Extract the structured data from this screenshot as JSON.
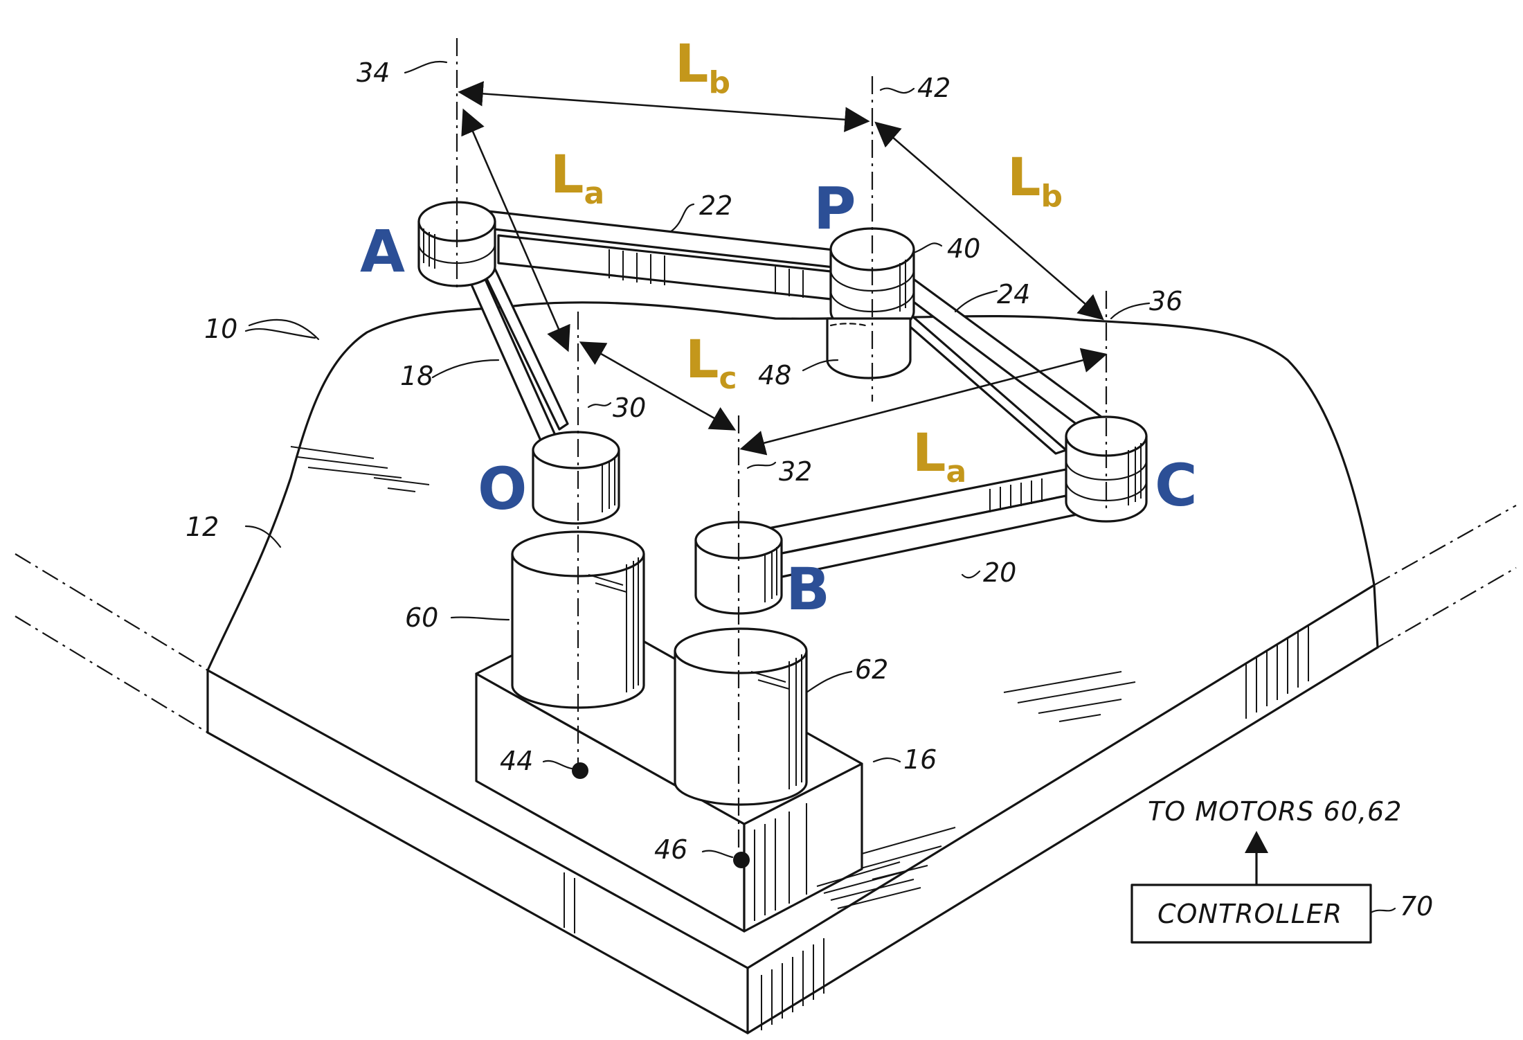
{
  "points": {
    "A": "A",
    "P": "P",
    "O": "O",
    "B": "B",
    "C": "C"
  },
  "lengths": {
    "top": {
      "main": "L",
      "sub": "b"
    },
    "right": {
      "main": "L",
      "sub": "b"
    },
    "left": {
      "main": "L",
      "sub": "a"
    },
    "middle": {
      "main": "L",
      "sub": "c"
    },
    "lower": {
      "main": "L",
      "sub": "a"
    }
  },
  "refs": {
    "r34": "34",
    "r42": "42",
    "r22": "22",
    "r40": "40",
    "r24": "24",
    "r36": "36",
    "r10": "10",
    "r18": "18",
    "r48": "48",
    "r30": "30",
    "r32": "32",
    "r12": "12",
    "r20": "20",
    "r60": "60",
    "r62": "62",
    "r44": "44",
    "r16": "16",
    "r46": "46",
    "r70": "70"
  },
  "controller": {
    "box_label": "CONTROLLER",
    "output_label": "TO MOTORS 60,62"
  },
  "colors": {
    "point_label": "#2c4f96",
    "length_label": "#c4971b",
    "ink": "#141414"
  }
}
